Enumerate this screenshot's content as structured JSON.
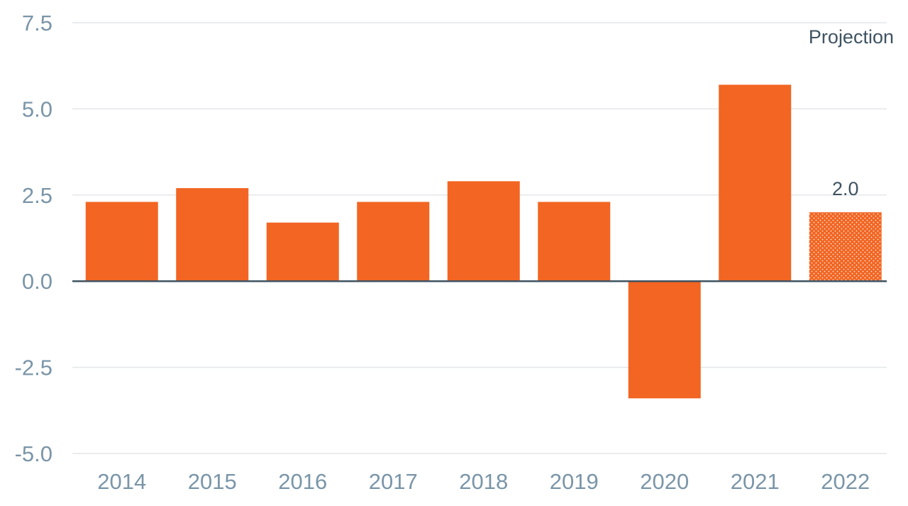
{
  "chart_data": {
    "type": "bar",
    "categories": [
      "2014",
      "2015",
      "2016",
      "2017",
      "2018",
      "2019",
      "2020",
      "2021",
      "2022"
    ],
    "values": [
      2.3,
      2.7,
      1.7,
      2.3,
      2.9,
      2.3,
      -3.4,
      5.7,
      2.0
    ],
    "projected": [
      false,
      false,
      false,
      false,
      false,
      false,
      false,
      false,
      true
    ],
    "ylim": [
      -5.0,
      7.5
    ],
    "yticks": [
      7.5,
      5.0,
      2.5,
      0.0,
      -2.5,
      -5.0
    ],
    "ytick_labels": [
      "7.5",
      "5.0",
      "2.5",
      "0.0",
      "-2.5",
      "-5.0"
    ],
    "grid": true,
    "bar_color": "#f26522",
    "projection_label": "Projection",
    "data_labels": [
      {
        "category": "2022",
        "text": "2.0"
      }
    ]
  }
}
